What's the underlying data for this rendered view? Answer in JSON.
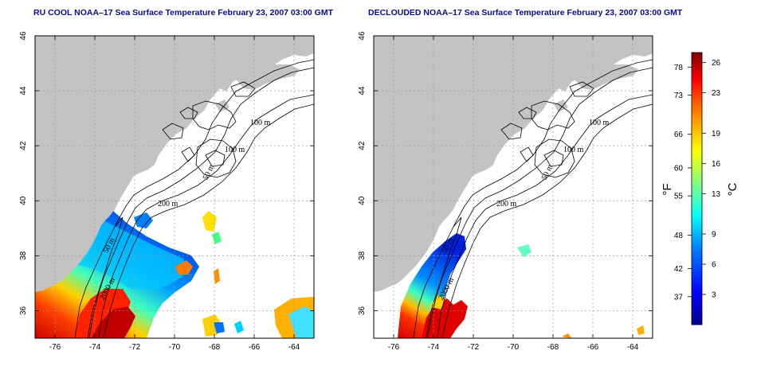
{
  "panels": [
    {
      "id": "ru-cool",
      "title": "RU COOL NOAA–17 Sea Surface Temperature February 23, 2007 03:00 GMT"
    },
    {
      "id": "declouded",
      "title": "DECLOUDED NOAA–17 Sea Surface Temperature February 23, 2007 03:00 GMT"
    }
  ],
  "map": {
    "lon_range": [
      -77,
      -63
    ],
    "lat_range": [
      35,
      46
    ],
    "lon_ticks": [
      "-76",
      "-74",
      "-72",
      "-70",
      "-68",
      "-66",
      "-64"
    ],
    "lat_ticks": [
      "36",
      "38",
      "40",
      "42",
      "44",
      "46"
    ],
    "contours": {
      "c100a": "100 m",
      "c100b": "100 m",
      "c50": "50 m",
      "c200": "200 m",
      "c2000": "2000 m",
      "c50coast": "50 m"
    },
    "colors": {
      "land": "#c3c3c3",
      "ocean": "#ffffff",
      "contour": "#000000",
      "grid": "#9a9a9a"
    }
  },
  "colorbar": {
    "fahrenheit_ticks": [
      "78",
      "73",
      "66",
      "60",
      "55",
      "48",
      "42",
      "37"
    ],
    "celsius_ticks": [
      "26",
      "23",
      "19",
      "16",
      "13",
      "9",
      "6",
      "3"
    ],
    "fahrenheit_unit": "°F",
    "celsius_unit": "°C",
    "range_c": [
      0,
      27
    ],
    "colors": [
      "#00008f",
      "#0000ff",
      "#0080ff",
      "#00ffff",
      "#80ff80",
      "#ffff00",
      "#ff8000",
      "#ff0000",
      "#800000"
    ]
  }
}
